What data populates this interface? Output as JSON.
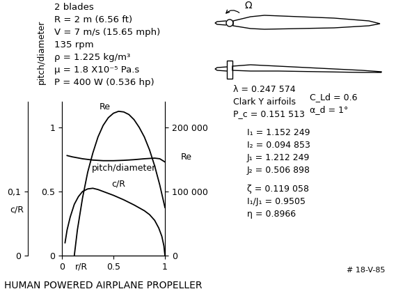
{
  "chart_data": {
    "type": "line",
    "title": "HUMAN POWERED AIRPLANE PROPELLER",
    "x_label": "r/R",
    "y_label": "pitch/diameter",
    "y2_label": "Re",
    "y3_label": "c/R",
    "xlim": [
      0,
      1
    ],
    "xticks": [
      0,
      0.5,
      1
    ],
    "ylim": [
      0,
      1.2
    ],
    "yticks": [
      0,
      0.5,
      1
    ],
    "y2lim": [
      0,
      240000
    ],
    "y2ticks": [
      0,
      {
        "value": 100000,
        "label": "100 000"
      },
      {
        "value": 200000,
        "label": "200 000"
      }
    ],
    "y3lim": [
      0,
      0.24
    ],
    "y3ticks": [
      0,
      {
        "value": 0.1,
        "label": "0,1"
      }
    ],
    "grid": false,
    "series": [
      {
        "name": "pitch/diameter",
        "axis": "y",
        "color": "#000000",
        "line_style": "solid",
        "x": [
          0.05,
          0.1,
          0.2,
          0.3,
          0.4,
          0.5,
          0.6,
          0.7,
          0.8,
          0.9,
          0.95,
          1.0
        ],
        "values": [
          0.78,
          0.77,
          0.755,
          0.745,
          0.74,
          0.74,
          0.743,
          0.748,
          0.755,
          0.76,
          0.755,
          0.73
        ]
      },
      {
        "name": "Re",
        "axis": "y2",
        "color": "#000000",
        "line_style": "solid",
        "x": [
          0.12,
          0.15,
          0.2,
          0.25,
          0.3,
          0.35,
          0.4,
          0.45,
          0.5,
          0.55,
          0.6,
          0.65,
          0.7,
          0.75,
          0.8,
          0.85,
          0.9,
          0.95,
          1.0
        ],
        "values": [
          0,
          40000,
          90000,
          130000,
          160000,
          185000,
          203000,
          215000,
          222000,
          225000,
          224000,
          220000,
          212000,
          200000,
          185000,
          165000,
          140000,
          110000,
          75000
        ]
      },
      {
        "name": "c/R",
        "axis": "y3",
        "color": "#000000",
        "line_style": "solid",
        "x": [
          0.03,
          0.05,
          0.08,
          0.12,
          0.16,
          0.2,
          0.25,
          0.3,
          0.35,
          0.4,
          0.5,
          0.6,
          0.7,
          0.8,
          0.85,
          0.9,
          0.94,
          0.97,
          0.99,
          1.0
        ],
        "values": [
          0.02,
          0.04,
          0.06,
          0.08,
          0.092,
          0.1,
          0.104,
          0.105,
          0.103,
          0.1,
          0.094,
          0.087,
          0.079,
          0.07,
          0.064,
          0.055,
          0.043,
          0.03,
          0.015,
          0.0
        ]
      }
    ],
    "annotations": {
      "parameters": [
        "2 blades",
        "R = 2 m (6.56 ft)",
        "V = 7 m/s (15.65 mph)",
        "135 rpm",
        "ρ = 1.225 kg/m³",
        "μ = 1.8 X10⁻⁵ Pa.s",
        "P = 400 W (0.536 hp)"
      ],
      "design": [
        "λ = 0.247 574",
        "Clark Y airfoils",
        "C_Ld = 0.6",
        "α_d = 1°",
        "P_c = 0.151 513"
      ],
      "integrals": [
        "I₁ = 1.152 249",
        "I₂ = 0.094 853",
        "J₁ = 1.212 249",
        "J₂ = 0.506 898"
      ],
      "results": [
        "ζ = 0.119 058",
        "I₁/J₁ = 0.9505",
        "η = 0.8966"
      ],
      "rotation": "Ω",
      "signature": "# 18-V-85"
    }
  }
}
